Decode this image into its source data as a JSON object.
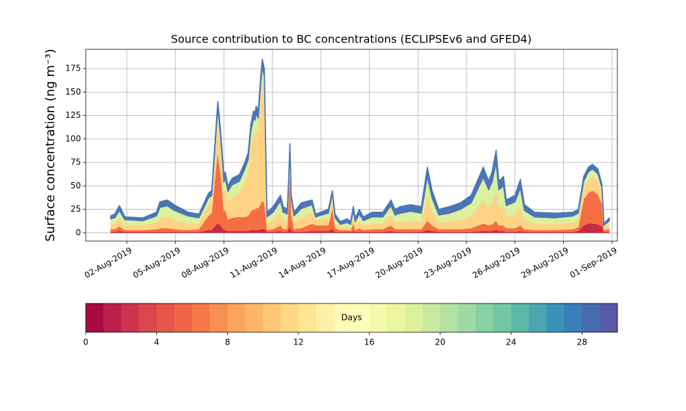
{
  "chart_data": {
    "type": "stacked_area",
    "title": "Source contribution to BC concentrations (ECLIPSEv6 and GFED4)",
    "ylabel": "Surface concentration (ng m⁻³)",
    "grid": true,
    "x": [
      "2019-08-01 00:00",
      "2019-08-01 06:00",
      "2019-08-01 13:00",
      "2019-08-01 21:00",
      "2019-08-03 00:00",
      "2019-08-03 20:00",
      "2019-08-04 01:00",
      "2019-08-04 12:00",
      "2019-08-04 22:00",
      "2019-08-05 19:00",
      "2019-08-06 11:00",
      "2019-08-07 01:00",
      "2019-08-07 06:00",
      "2019-08-07 13:00",
      "2019-08-07 15:00",
      "2019-08-07 19:00",
      "2019-08-08 00:00",
      "2019-08-08 02:00",
      "2019-08-08 06:00",
      "2019-08-08 12:00",
      "2019-08-08 23:00",
      "2019-08-09 07:00",
      "2019-08-09 12:00",
      "2019-08-09 16:00",
      "2019-08-09 20:00",
      "2019-08-09 22:00",
      "2019-08-10 00:00",
      "2019-08-10 03:00",
      "2019-08-10 07:00",
      "2019-08-10 09:00",
      "2019-08-10 12:00",
      "2019-08-10 16:00",
      "2019-08-11 01:00",
      "2019-08-11 12:00",
      "2019-08-11 16:00",
      "2019-08-11 22:00",
      "2019-08-12 00:00",
      "2019-08-12 02:00",
      "2019-08-12 04:00",
      "2019-08-12 08:00",
      "2019-08-12 19:00",
      "2019-08-13 11:00",
      "2019-08-13 16:00",
      "2019-08-14 11:00",
      "2019-08-14 17:00",
      "2019-08-14 21:00",
      "2019-08-15 05:00",
      "2019-08-15 15:00",
      "2019-08-15 20:00",
      "2019-08-16 00:00",
      "2019-08-16 03:00",
      "2019-08-16 09:00",
      "2019-08-16 15:00",
      "2019-08-17 04:00",
      "2019-08-17 20:00",
      "2019-08-18 08:00",
      "2019-08-18 14:00",
      "2019-08-18 22:00",
      "2019-08-19 13:00",
      "2019-08-20 05:00",
      "2019-08-20 14:00",
      "2019-08-20 21:00",
      "2019-08-21 07:00",
      "2019-08-21 23:00",
      "2019-08-22 15:00",
      "2019-08-23 07:00",
      "2019-08-24 01:00",
      "2019-08-24 09:00",
      "2019-08-24 14:00",
      "2019-08-24 20:00",
      "2019-08-25 00:00",
      "2019-08-25 07:00",
      "2019-08-25 11:00",
      "2019-08-26 00:00",
      "2019-08-26 08:00",
      "2019-08-26 14:00",
      "2019-08-27 05:00",
      "2019-08-28 12:00",
      "2019-08-29 14:00",
      "2019-08-29 22:00",
      "2019-08-30 06:00",
      "2019-08-30 13:00",
      "2019-08-30 19:00",
      "2019-08-31 03:00",
      "2019-08-31 09:00",
      "2019-08-31 12:00",
      "2019-08-31 20:00"
    ],
    "series": [
      {
        "color": "#c62a45",
        "values": [
          1,
          1,
          2,
          1,
          1,
          1,
          1,
          1,
          1,
          1,
          1,
          3,
          3,
          9,
          10,
          8,
          3,
          3,
          2,
          2,
          2,
          2,
          2,
          3,
          3,
          3,
          3,
          3,
          4,
          4,
          4,
          1,
          1,
          2,
          1,
          1,
          4,
          6,
          3,
          1,
          1,
          2,
          2,
          2,
          4,
          1,
          1,
          1,
          1,
          2,
          1,
          1,
          1,
          1,
          1,
          2,
          1,
          1,
          1,
          1,
          3,
          2,
          1,
          1,
          1,
          1,
          2,
          2,
          2,
          3,
          2,
          2,
          1,
          1,
          2,
          1,
          1,
          1,
          1,
          2,
          8,
          10,
          10,
          9,
          7,
          1,
          1
        ]
      },
      {
        "color": "#f46d43",
        "values": [
          3,
          3,
          5,
          2,
          2,
          3,
          4,
          4,
          3,
          2,
          3,
          15,
          18,
          65,
          75,
          55,
          20,
          22,
          12,
          14,
          15,
          15,
          16,
          20,
          22,
          22,
          24,
          23,
          28,
          30,
          28,
          2,
          3,
          6,
          3,
          3,
          30,
          60,
          18,
          3,
          4,
          8,
          6,
          6,
          22,
          4,
          2,
          2,
          1,
          8,
          2,
          4,
          2,
          3,
          3,
          6,
          3,
          3,
          3,
          3,
          10,
          6,
          3,
          3,
          3,
          4,
          8,
          6,
          7,
          10,
          6,
          6,
          4,
          4,
          6,
          3,
          2,
          2,
          3,
          4,
          28,
          33,
          35,
          32,
          24,
          2,
          3
        ]
      },
      {
        "color": "#fed384",
        "values": [
          5,
          6,
          9,
          5,
          5,
          7,
          11,
          12,
          10,
          7,
          6,
          12,
          12,
          28,
          35,
          30,
          20,
          22,
          18,
          22,
          25,
          37,
          45,
          70,
          82,
          80,
          85,
          81,
          114,
          127,
          119,
          7,
          9,
          14,
          9,
          8,
          10,
          17,
          10,
          7,
          11,
          11,
          5,
          8,
          10,
          6,
          3,
          4,
          3,
          9,
          5,
          8,
          5,
          6,
          6,
          11,
          7,
          8,
          9,
          8,
          27,
          15,
          7,
          8,
          10,
          13,
          25,
          19,
          23,
          32,
          19,
          21,
          12,
          14,
          20,
          10,
          7,
          6,
          7,
          8,
          12,
          14,
          15,
          14,
          11,
          3,
          5
        ]
      },
      {
        "color": "#dcf09e",
        "values": [
          6,
          6,
          8,
          6,
          5,
          7,
          11,
          12,
          10,
          8,
          6,
          7,
          7,
          12,
          13,
          11,
          11,
          12,
          12,
          13,
          13,
          14,
          15,
          15,
          15,
          15,
          15,
          15,
          16,
          16,
          16,
          7,
          9,
          12,
          9,
          8,
          7,
          8,
          6,
          7,
          10,
          9,
          4,
          5,
          6,
          5,
          3,
          4,
          4,
          5,
          4,
          7,
          5,
          7,
          7,
          10,
          8,
          9,
          10,
          9,
          20,
          14,
          8,
          9,
          11,
          14,
          24,
          19,
          22,
          30,
          19,
          21,
          12,
          14,
          20,
          10,
          7,
          7,
          7,
          7,
          7,
          8,
          8,
          8,
          6,
          2,
          4
        ]
      },
      {
        "color": "#4a76b5",
        "values": [
          3,
          4,
          5,
          3,
          3,
          4,
          6,
          6,
          6,
          4,
          4,
          5,
          5,
          6,
          7,
          6,
          6,
          6,
          6,
          7,
          7,
          7,
          7,
          7,
          8,
          8,
          8,
          8,
          8,
          8,
          8,
          5,
          6,
          6,
          6,
          5,
          4,
          4,
          3,
          4,
          6,
          5,
          3,
          4,
          3,
          4,
          3,
          4,
          3,
          4,
          4,
          5,
          4,
          5,
          5,
          6,
          6,
          7,
          7,
          7,
          10,
          8,
          6,
          7,
          7,
          8,
          11,
          9,
          11,
          13,
          9,
          10,
          6,
          7,
          9,
          6,
          5,
          5,
          4,
          4,
          5,
          5,
          5,
          5,
          4,
          2,
          3
        ]
      }
    ],
    "xlim": [
      "2019-07-30 11:00",
      "2019-09-01 08:00"
    ],
    "xticks": [
      {
        "value": "2019-08-02 00:00",
        "label": "02-Aug-2019"
      },
      {
        "value": "2019-08-05 00:00",
        "label": "05-Aug-2019"
      },
      {
        "value": "2019-08-08 00:00",
        "label": "08-Aug-2019"
      },
      {
        "value": "2019-08-11 00:00",
        "label": "11-Aug-2019"
      },
      {
        "value": "2019-08-14 00:00",
        "label": "14-Aug-2019"
      },
      {
        "value": "2019-08-17 00:00",
        "label": "17-Aug-2019"
      },
      {
        "value": "2019-08-20 00:00",
        "label": "20-Aug-2019"
      },
      {
        "value": "2019-08-23 00:00",
        "label": "23-Aug-2019"
      },
      {
        "value": "2019-08-26 00:00",
        "label": "26-Aug-2019"
      },
      {
        "value": "2019-08-29 00:00",
        "label": "29-Aug-2019"
      },
      {
        "value": "2019-09-01 00:00",
        "label": "01-Sep-2019"
      }
    ],
    "ylim": [
      -8.8,
      195.5
    ],
    "yticks": [
      0,
      25,
      50,
      75,
      100,
      125,
      150,
      175
    ],
    "colorbar": {
      "label": "Days",
      "lim": [
        0,
        30
      ],
      "levels": 30,
      "ticks": [
        0,
        4,
        8,
        12,
        16,
        20,
        24,
        28
      ],
      "colormap": [
        "#9e0142",
        "#d53e4f",
        "#f46d43",
        "#fdae61",
        "#fee08b",
        "#ffffbf",
        "#e6f598",
        "#abdda4",
        "#66c2a5",
        "#3288bd",
        "#5e4fa2"
      ]
    }
  }
}
